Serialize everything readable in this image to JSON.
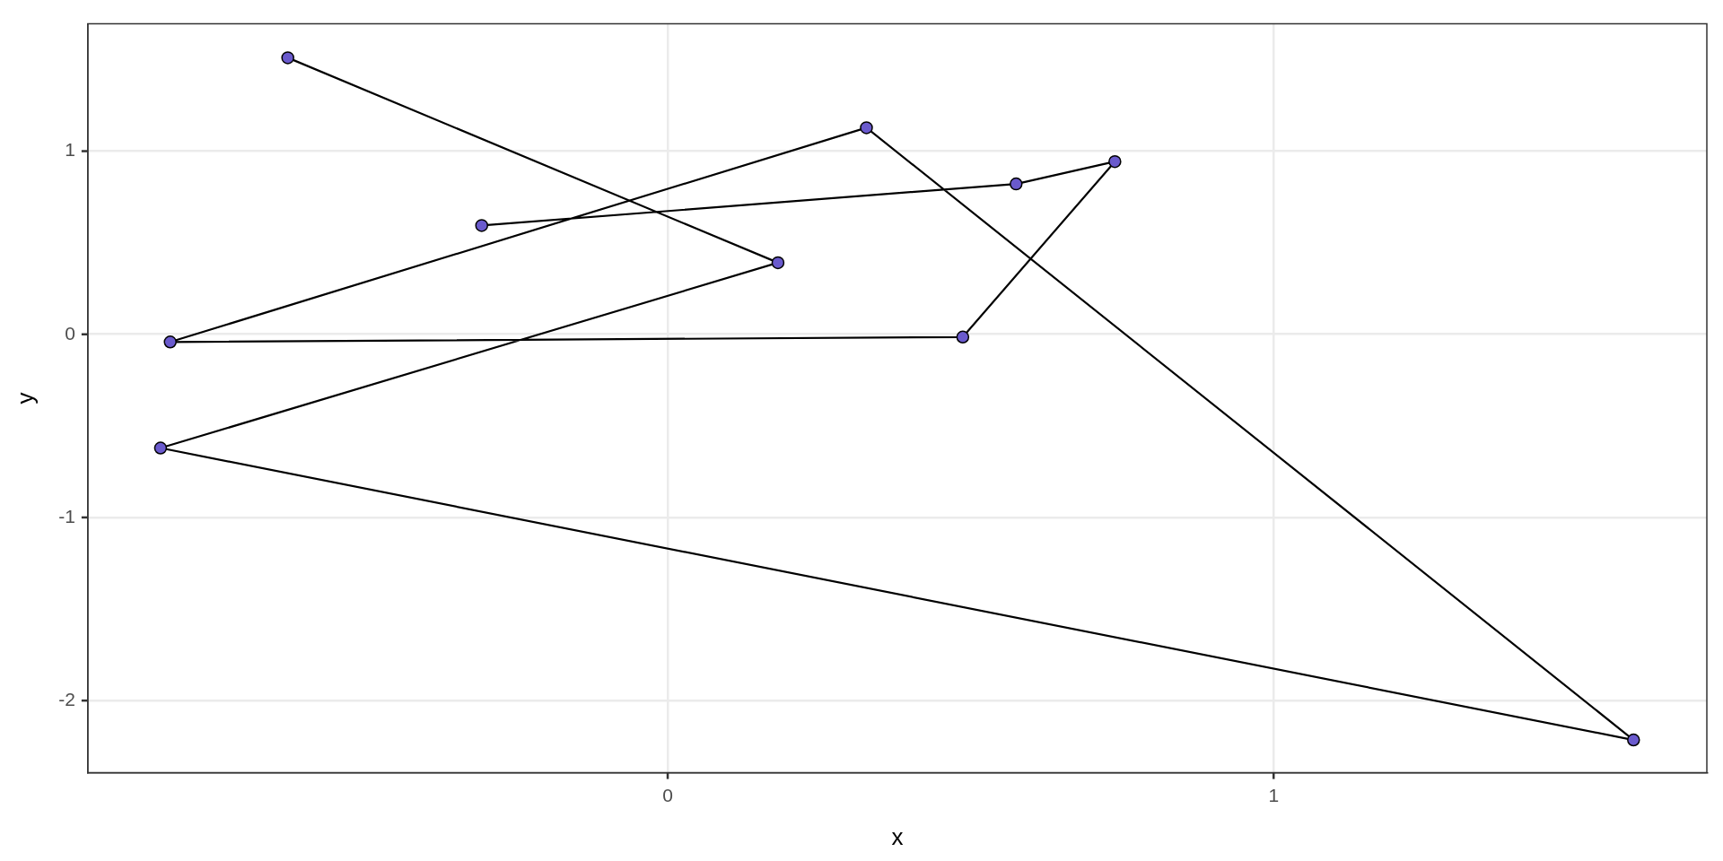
{
  "chart_data": {
    "type": "line",
    "xlabel": "x",
    "ylabel": "y",
    "x": [
      -0.627,
      0.182,
      -0.837,
      1.594,
      0.328,
      -0.821,
      0.487,
      0.738,
      0.575,
      -0.307
    ],
    "series": [
      {
        "color": "#6a5acd",
        "values": [
          1.51,
          0.391,
          -0.621,
          -2.215,
          1.128,
          -0.042,
          -0.015,
          0.943,
          0.821,
          0.594
        ]
      }
    ],
    "xlim": [
      -0.957,
      1.715
    ],
    "xticks": [
      0,
      1
    ],
    "ylim": [
      -2.394,
      1.695
    ],
    "yticks": [
      -2,
      -1,
      0,
      1
    ],
    "grid": true,
    "marker": "circle",
    "line_style": "solid",
    "legend": false
  }
}
